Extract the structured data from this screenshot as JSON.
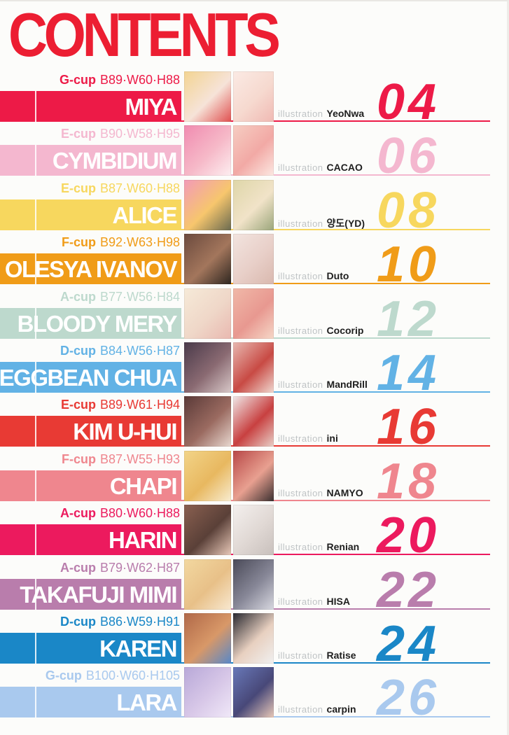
{
  "title": "CONTENTS",
  "title_color": "#ec1e32",
  "illustration_label": "illustration",
  "entries": [
    {
      "cup": "G-cup",
      "measurements": "B89·W60·H88",
      "name": "MIYA",
      "illustrator": "YeoNwa",
      "page": "04",
      "color": "#ed1a47",
      "thumb1": [
        "#f3d491",
        "#f6e3d8",
        "#e05050"
      ],
      "thumb2": [
        "#fbeae4",
        "#f6d9cf",
        "#f0b9b3"
      ]
    },
    {
      "cup": "E-cup",
      "measurements": "B90·W58·H95",
      "name": "CYMBIDIUM",
      "illustrator": "CACAO",
      "page": "06",
      "color": "#f4b7cf",
      "thumb1": [
        "#f08bb0",
        "#f6b9c8",
        "#fdeef0"
      ],
      "thumb2": [
        "#f6cdc2",
        "#f2a9a5",
        "#fce8e2"
      ]
    },
    {
      "cup": "E-cup",
      "measurements": "B87·W60·H88",
      "name": "ALICE",
      "illustrator": "양도(YD)",
      "page": "08",
      "color": "#f7d75e",
      "thumb1": [
        "#f29ab8",
        "#f7c66d",
        "#6a6a50"
      ],
      "thumb2": [
        "#ded6a8",
        "#f1e3c8",
        "#9aa57a"
      ]
    },
    {
      "cup": "F-cup",
      "measurements": "B92·W63·H98",
      "name": "OLESYA IVANOV",
      "illustrator": "Duto",
      "page": "10",
      "color": "#f09c18",
      "thumb1": [
        "#6b4a3e",
        "#a3765c",
        "#2e2620"
      ],
      "thumb2": [
        "#f2e4df",
        "#e8cfc8",
        "#d9b8ae"
      ]
    },
    {
      "cup": "A-cup",
      "measurements": "B77·W56·H84",
      "name": "BLOODY MERY",
      "illustrator": "Cocorip",
      "page": "12",
      "color": "#bdd9cd",
      "thumb1": [
        "#f6ead8",
        "#efd7c8",
        "#e9b8b0"
      ],
      "thumb2": [
        "#f0b8a8",
        "#e89890",
        "#f6d8c8"
      ]
    },
    {
      "cup": "D-cup",
      "measurements": "B84·W56·H87",
      "name": "EGGBEAN CHUA",
      "illustrator": "MandRill",
      "page": "14",
      "color": "#62b2e5",
      "thumb1": [
        "#4a3a4a",
        "#8a6a72",
        "#d8c8c8"
      ],
      "thumb2": [
        "#e8b8b0",
        "#c84a44",
        "#f0d8d0"
      ]
    },
    {
      "cup": "E-cup",
      "measurements": "B89·W61·H94",
      "name": "KIM U-HUI",
      "illustrator": "ini",
      "page": "16",
      "color": "#e83a34",
      "thumb1": [
        "#5a3a38",
        "#9a6a60",
        "#e8d8d0"
      ],
      "thumb2": [
        "#f0e8e8",
        "#c84040",
        "#e8d0c8"
      ]
    },
    {
      "cup": "F-cup",
      "measurements": "B87·W55·H93",
      "name": "CHAPI",
      "illustrator": "NAMYO",
      "page": "18",
      "color": "#ef868e",
      "thumb1": [
        "#f2d488",
        "#e8b860",
        "#f8ecd0"
      ],
      "thumb2": [
        "#b84848",
        "#e8a090",
        "#3a3030"
      ]
    },
    {
      "cup": "A-cup",
      "measurements": "B80·W60·H88",
      "name": "HARIN",
      "illustrator": "Renian",
      "page": "20",
      "color": "#ec1a5e",
      "thumb1": [
        "#8a6050",
        "#5a4038",
        "#e8c8b8"
      ],
      "thumb2": [
        "#f4f0ee",
        "#e0d8d4",
        "#c8c0bc"
      ]
    },
    {
      "cup": "A-cup",
      "measurements": "B79·W62·H87",
      "name": "TAKAFUJI MIMI",
      "illustrator": "HISA",
      "page": "22",
      "color": "#b97dac",
      "thumb1": [
        "#f2d8a0",
        "#e8c088",
        "#f8e8d0"
      ],
      "thumb2": [
        "#4a4a58",
        "#888898",
        "#d8d8e0"
      ]
    },
    {
      "cup": "D-cup",
      "measurements": "B86·W59·H91",
      "name": "KAREN",
      "illustrator": "Ratise",
      "page": "24",
      "color": "#1a87c7",
      "thumb1": [
        "#b06848",
        "#d89868",
        "#5888c8"
      ],
      "thumb2": [
        "#282830",
        "#e8d0c0",
        "#f0f0f0"
      ]
    },
    {
      "cup": "G-cup",
      "measurements": "B100·W60·H105",
      "name": "LARA",
      "illustrator": "carpin",
      "page": "26",
      "color": "#a9c9ee",
      "thumb1": [
        "#b8a8d8",
        "#d8c8e8",
        "#f0e8f8"
      ],
      "thumb2": [
        "#6878b8",
        "#484878",
        "#e8c8b8"
      ]
    }
  ]
}
